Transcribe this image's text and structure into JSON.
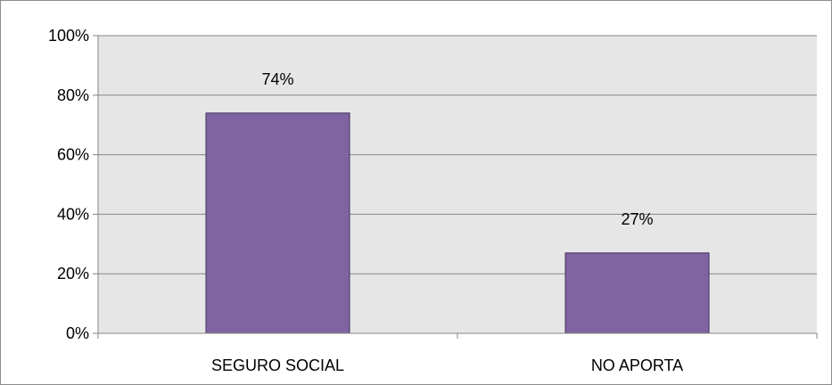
{
  "chart_data": {
    "type": "bar",
    "title": "",
    "xlabel": "",
    "ylabel": "",
    "categories": [
      "SEGURO SOCIAL",
      "NO APORTA"
    ],
    "values": [
      74,
      27
    ],
    "data_labels": [
      "74%",
      "27%"
    ],
    "ylim": [
      0,
      100
    ],
    "y_ticks": [
      0,
      20,
      40,
      60,
      80,
      100
    ],
    "y_tick_labels": [
      "0%",
      "20%",
      "40%",
      "60%",
      "80%",
      "100%"
    ],
    "grid": true,
    "legend": "none",
    "colors": {
      "bar_fill": "#8064a2",
      "bar_stroke": "#3f2f5b",
      "grid": "#868686",
      "axis": "#868686"
    }
  }
}
